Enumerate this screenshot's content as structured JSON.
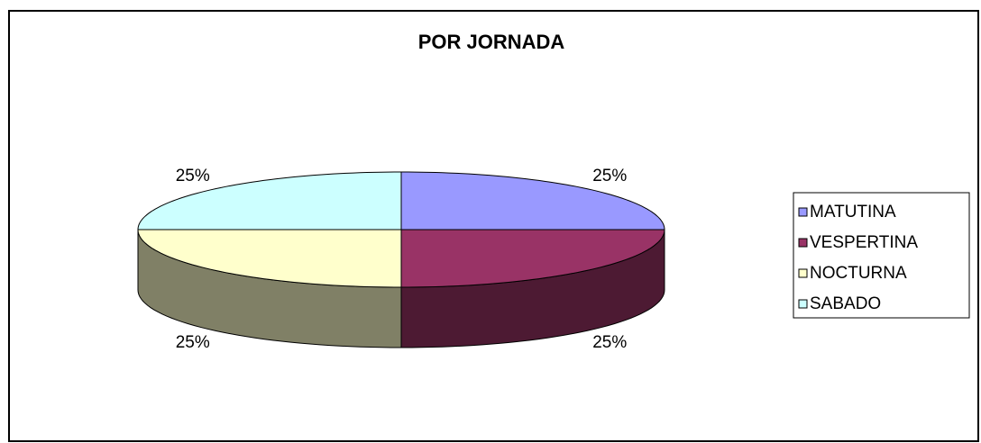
{
  "chart_data": {
    "type": "pie",
    "title": "POR JORNADA",
    "categories": [
      "MATUTINA",
      "VESPERTINA",
      "NOCTURNA",
      "SABADO"
    ],
    "values": [
      25,
      25,
      25,
      25
    ],
    "value_labels": [
      "25%",
      "25%",
      "25%",
      "25%"
    ],
    "colors": [
      "#9999ff",
      "#993366",
      "#ffffcc",
      "#ccffff"
    ],
    "legend": "right"
  }
}
